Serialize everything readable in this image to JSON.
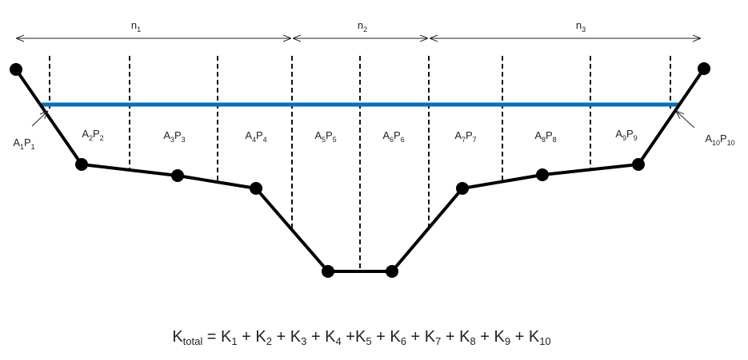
{
  "zones": [
    {
      "label": [
        [
          "n",
          "1"
        ]
      ]
    },
    {
      "label": [
        [
          "n",
          "2"
        ]
      ]
    },
    {
      "label": [
        [
          "n",
          "3"
        ]
      ]
    }
  ],
  "subareas": [
    {
      "label": [
        [
          "A",
          "1"
        ],
        [
          "P",
          "1"
        ]
      ]
    },
    {
      "label": [
        [
          "A",
          "2"
        ],
        [
          "P",
          "2"
        ]
      ]
    },
    {
      "label": [
        [
          "A",
          "3"
        ],
        [
          "P",
          "3"
        ]
      ]
    },
    {
      "label": [
        [
          "A",
          "4"
        ],
        [
          "P",
          "4"
        ]
      ]
    },
    {
      "label": [
        [
          "A",
          "5"
        ],
        [
          "P",
          "5"
        ]
      ]
    },
    {
      "label": [
        [
          "A",
          "6"
        ],
        [
          "P",
          "6"
        ]
      ]
    },
    {
      "label": [
        [
          "A",
          "7"
        ],
        [
          "P",
          "7"
        ]
      ]
    },
    {
      "label": [
        [
          "A",
          "8"
        ],
        [
          "P",
          "8"
        ]
      ]
    },
    {
      "label": [
        [
          "A",
          "9"
        ],
        [
          "P",
          "9"
        ]
      ]
    },
    {
      "label": [
        [
          "A",
          "10"
        ],
        [
          "P",
          "10"
        ]
      ]
    }
  ],
  "formula": [
    [
      "K",
      "total"
    ],
    [
      " = K",
      "1"
    ],
    [
      " + K",
      "2"
    ],
    [
      " + K",
      "3"
    ],
    [
      " + K",
      "4"
    ],
    [
      " +K",
      "5"
    ],
    [
      " + K",
      "6"
    ],
    [
      " + K",
      "7"
    ],
    [
      " + K",
      "8"
    ],
    [
      " + K",
      "9"
    ],
    [
      " + K",
      "10"
    ]
  ]
}
